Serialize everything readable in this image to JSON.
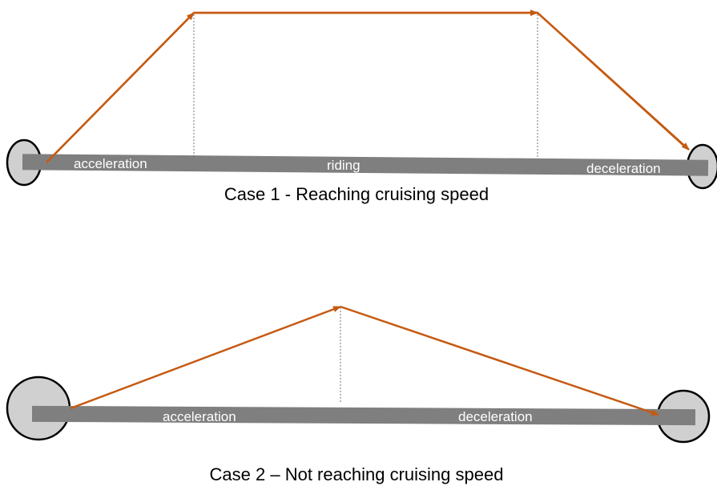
{
  "cases": [
    {
      "caption": "Case 1 - Reaching cruising speed",
      "labels": [
        "acceleration",
        "riding",
        "deceleration"
      ]
    },
    {
      "caption": "Case 2 – Not reaching cruising speed",
      "labels": [
        "acceleration",
        "deceleration"
      ]
    }
  ]
}
